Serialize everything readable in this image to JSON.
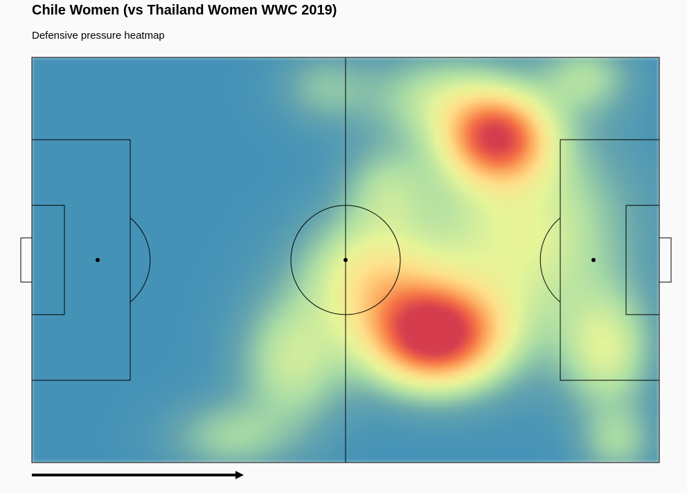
{
  "chart_data": {
    "type": "heatmap",
    "title": "Chile Women (vs Thailand Women WWC 2019)",
    "subtitle": "Defensive pressure heatmap",
    "xlim": [
      0,
      120
    ],
    "ylim": [
      0,
      80
    ],
    "attack_direction": "left-to-right",
    "colormap": [
      "#3288bd",
      "#66a5ad",
      "#abdda4",
      "#e6f598",
      "#fee08b",
      "#fdae61",
      "#f46d43",
      "#d53e4f"
    ],
    "background_level": 0.05,
    "hotspots": [
      {
        "x": 77,
        "y": 55,
        "intensity": 1.0,
        "sx": 9,
        "sy": 7
      },
      {
        "x": 89,
        "y": 16,
        "intensity": 0.78,
        "sx": 7,
        "sy": 6
      },
      {
        "x": 65,
        "y": 43,
        "intensity": 0.42,
        "sx": 9,
        "sy": 8
      },
      {
        "x": 94,
        "y": 35,
        "intensity": 0.38,
        "sx": 13,
        "sy": 14
      },
      {
        "x": 110,
        "y": 58,
        "intensity": 0.32,
        "sx": 6,
        "sy": 8
      },
      {
        "x": 50,
        "y": 60,
        "intensity": 0.3,
        "sx": 7,
        "sy": 9
      },
      {
        "x": 78,
        "y": 8,
        "intensity": 0.25,
        "sx": 10,
        "sy": 6
      },
      {
        "x": 38,
        "y": 75,
        "intensity": 0.2,
        "sx": 8,
        "sy": 5
      },
      {
        "x": 106,
        "y": 4,
        "intensity": 0.22,
        "sx": 6,
        "sy": 5
      },
      {
        "x": 68,
        "y": 26,
        "intensity": 0.2,
        "sx": 6,
        "sy": 6
      },
      {
        "x": 56,
        "y": 6,
        "intensity": 0.15,
        "sx": 6,
        "sy": 5
      },
      {
        "x": 112,
        "y": 76,
        "intensity": 0.2,
        "sx": 5,
        "sy": 5
      }
    ]
  }
}
